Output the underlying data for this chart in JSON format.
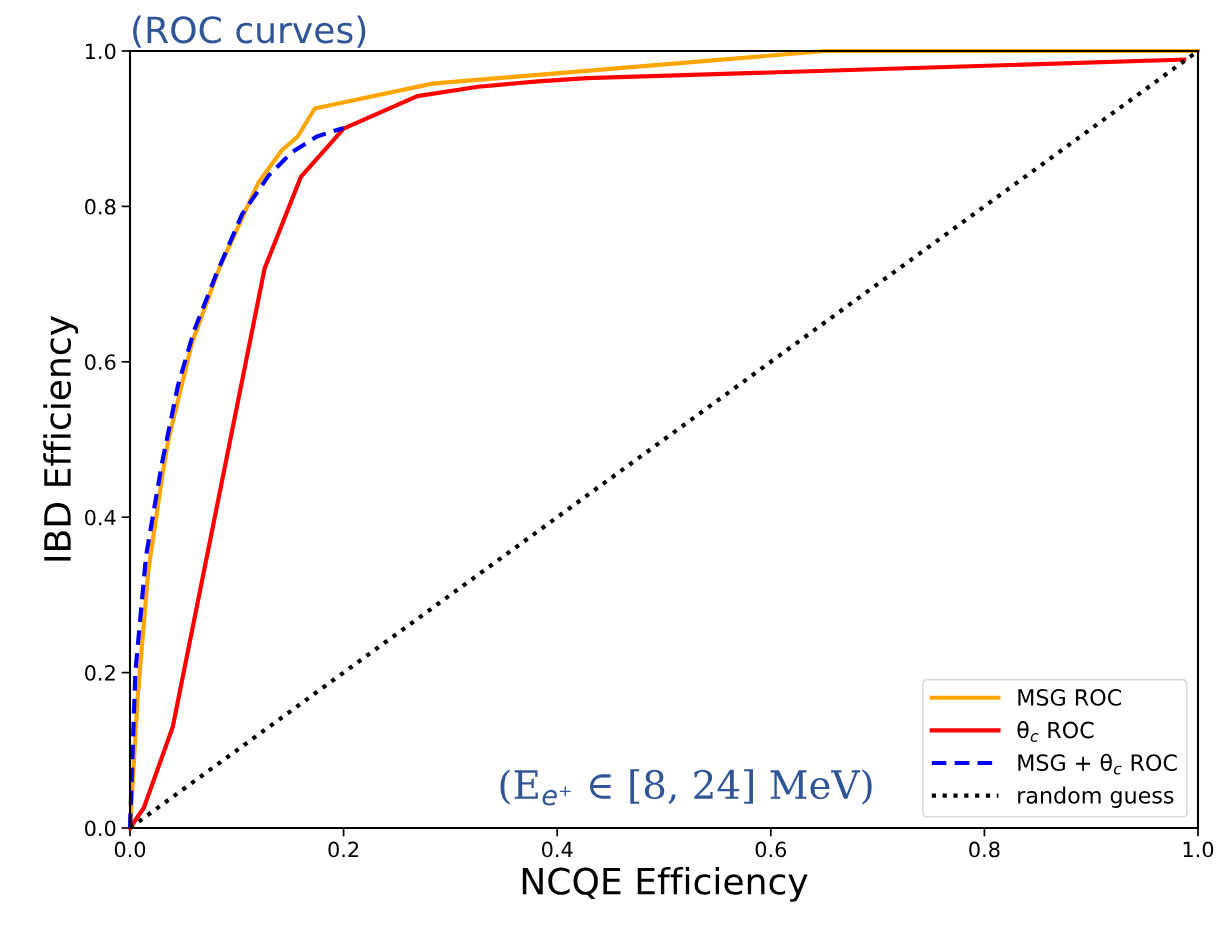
{
  "chart_data": {
    "type": "line",
    "xlabel": "NCQE Efficiency",
    "ylabel": "IBD Efficiency",
    "annotations": [
      "(ROC curves)",
      "(E$_{e⁺}$ ∈ [8, 24] MeV)"
    ],
    "series": [
      {
        "name": "MSG ROC",
        "color": "#ffa500",
        "line_style": "solid",
        "x": [
          0,
          0.007,
          0.017,
          0.031,
          0.036,
          0.058,
          0.084,
          0.12,
          0.142,
          0.157,
          0.173,
          0.283,
          0.651,
          1.0
        ],
        "values": [
          0,
          0.165,
          0.33,
          0.46,
          0.5,
          0.624,
          0.722,
          0.83,
          0.872,
          0.89,
          0.926,
          0.958,
          1.0,
          1.0
        ]
      },
      {
        "name": "θ$_{c}$ ROC",
        "color": "#ff0000",
        "line_style": "solid",
        "x": [
          0,
          0.013,
          0.04,
          0.126,
          0.16,
          0.2,
          0.269,
          0.326,
          0.382,
          0.428,
          0.987
        ],
        "values": [
          0,
          0.026,
          0.13,
          0.72,
          0.838,
          0.9,
          0.942,
          0.954,
          0.961,
          0.965,
          0.989
        ]
      },
      {
        "name": "MSG + θ$_{c}$ ROC",
        "color": "#0000ff",
        "line_style": "dashed",
        "x": [
          0,
          0.005,
          0.015,
          0.03,
          0.045,
          0.06,
          0.08,
          0.105,
          0.13,
          0.151,
          0.175,
          0.2
        ],
        "values": [
          0,
          0.2,
          0.35,
          0.47,
          0.57,
          0.64,
          0.71,
          0.79,
          0.84,
          0.869,
          0.89,
          0.901
        ]
      },
      {
        "name": "random guess",
        "color": "#000000",
        "line_style": "dotted",
        "x": [
          0,
          1
        ],
        "values": [
          0,
          1
        ]
      }
    ],
    "xlim": [
      0,
      1
    ],
    "ylim": [
      0,
      1
    ],
    "xticks": [
      {
        "value": 0,
        "label": "0.0"
      },
      0.2,
      0.4,
      0.6,
      0.8,
      {
        "value": 1,
        "label": "1.0"
      }
    ],
    "yticks": [
      {
        "value": 0,
        "label": "0.0"
      },
      0.2,
      0.4,
      0.6,
      0.8,
      {
        "value": 1,
        "label": "1.0"
      }
    ],
    "grid": false,
    "legend": "bottom right"
  }
}
